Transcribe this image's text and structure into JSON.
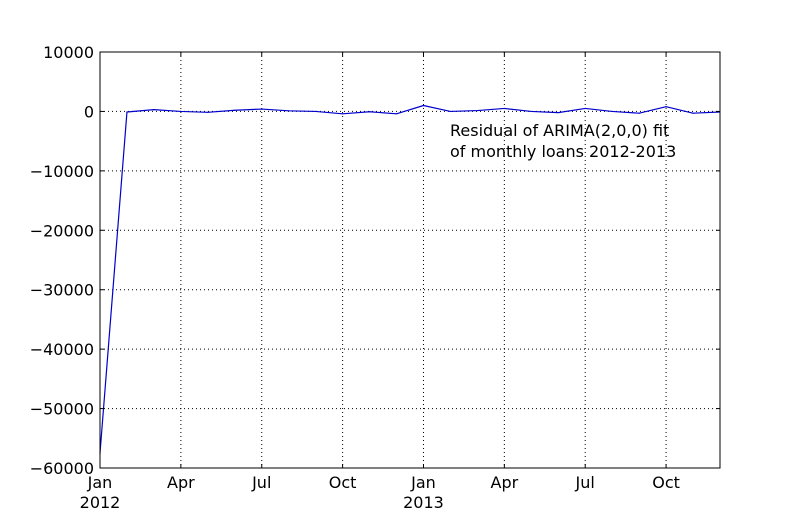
{
  "chart_data": {
    "type": "line",
    "title": "",
    "xlabel": "",
    "ylabel": "",
    "ylim": [
      -60000,
      10000
    ],
    "yticks": [
      10000,
      0,
      -10000,
      -20000,
      -30000,
      -40000,
      -50000,
      -60000
    ],
    "ytick_labels": [
      "10000",
      "0",
      "−10000",
      "−20000",
      "−30000",
      "−40000",
      "−50000",
      "−60000"
    ],
    "xlim": [
      "2012-01",
      "2013-12"
    ],
    "xticks": [
      {
        "date": "2012-01",
        "line1": "Jan",
        "line2": "2012"
      },
      {
        "date": "2012-04",
        "line1": "Apr",
        "line2": ""
      },
      {
        "date": "2012-07",
        "line1": "Jul",
        "line2": ""
      },
      {
        "date": "2012-10",
        "line1": "Oct",
        "line2": ""
      },
      {
        "date": "2013-01",
        "line1": "Jan",
        "line2": "2013"
      },
      {
        "date": "2013-04",
        "line1": "Apr",
        "line2": ""
      },
      {
        "date": "2013-07",
        "line1": "Jul",
        "line2": ""
      },
      {
        "date": "2013-10",
        "line1": "Oct",
        "line2": ""
      }
    ],
    "grid": "dotted",
    "annotation": [
      "Residual of ARIMA(2,0,0) fit",
      "of monthly loans 2012-2013"
    ],
    "series": [
      {
        "color": "#0000cc",
        "x": [
          "2012-01",
          "2012-02",
          "2012-03",
          "2012-04",
          "2012-05",
          "2012-06",
          "2012-07",
          "2012-08",
          "2012-09",
          "2012-10",
          "2012-11",
          "2012-12",
          "2013-01",
          "2013-02",
          "2013-03",
          "2013-04",
          "2013-05",
          "2013-06",
          "2013-07",
          "2013-08",
          "2013-09",
          "2013-10",
          "2013-11",
          "2013-12"
        ],
        "y": [
          -57500,
          -100,
          300,
          0,
          -150,
          200,
          400,
          100,
          0,
          -400,
          -50,
          -400,
          1000,
          0,
          150,
          500,
          0,
          -200,
          500,
          0,
          -300,
          800,
          -300,
          -100
        ]
      }
    ]
  }
}
